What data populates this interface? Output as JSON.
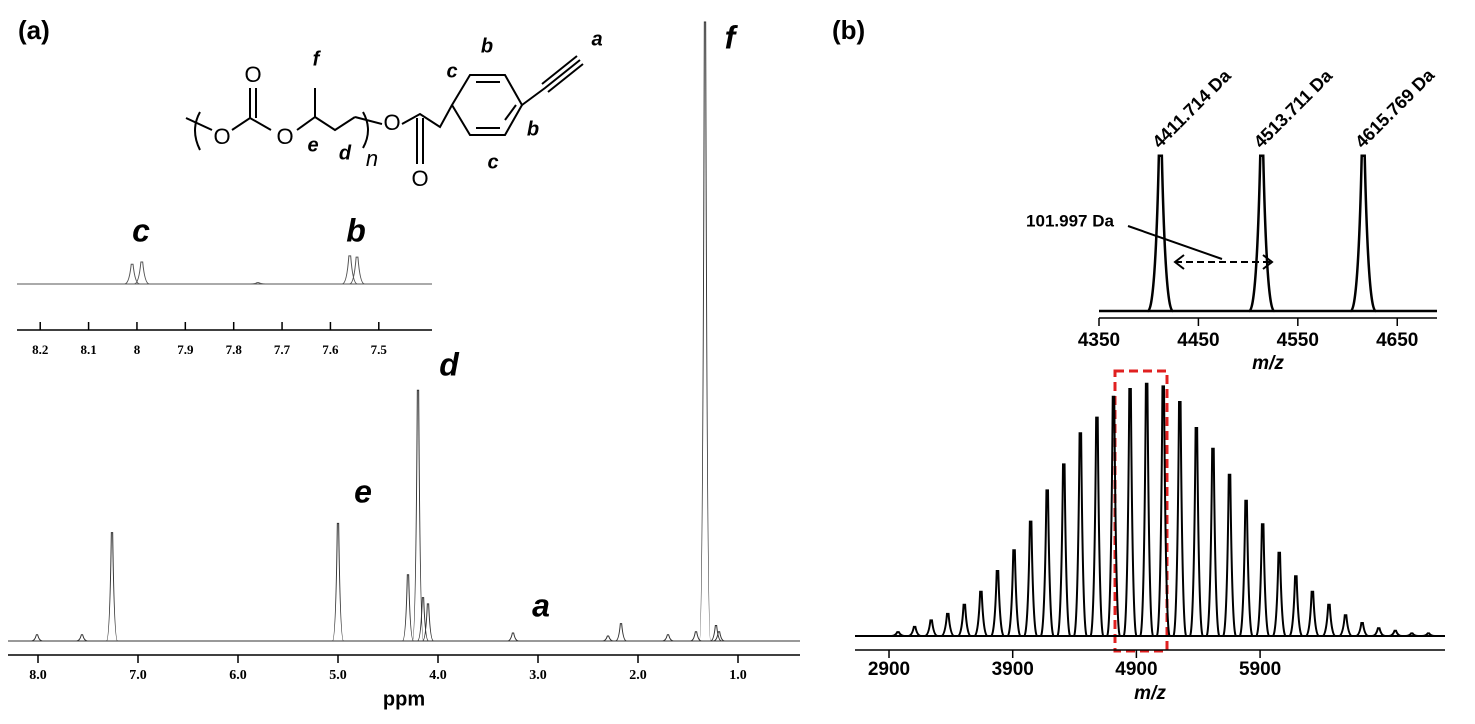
{
  "panel_labels": [
    "(a)",
    "(b)"
  ],
  "structure": {
    "atoms": [
      "O",
      "O",
      "O",
      "O",
      "O"
    ],
    "labels": [
      "f",
      "e",
      "d",
      "n",
      "c",
      "b",
      "a",
      "b",
      "c"
    ]
  },
  "chart_data": [
    {
      "type": "spectrum",
      "xlabel": "ppm",
      "x": [
        8.01,
        7.56,
        7.26,
        5.0,
        4.3,
        4.2,
        4.15,
        4.1,
        3.25,
        2.3,
        2.17,
        1.7,
        1.42,
        1.33,
        1.22,
        1.19
      ],
      "values": [
        1,
        1,
        17.5,
        19,
        10.7,
        40.5,
        7,
        6,
        1.3,
        0.8,
        2.8,
        1,
        1.5,
        100,
        2.5,
        1.5
      ],
      "xlim": [
        8.3,
        0.38
      ],
      "ylim": [
        0,
        100
      ],
      "xticks": [
        {
          "value": 8,
          "label": "8.0"
        },
        {
          "value": 7,
          "label": "7.0"
        },
        {
          "value": 6,
          "label": "6.0"
        },
        {
          "value": 5,
          "label": "5.0"
        },
        {
          "value": 4,
          "label": "4.0"
        },
        {
          "value": 3,
          "label": "3.0"
        },
        {
          "value": 2,
          "label": "2.0"
        },
        {
          "value": 1,
          "label": "1.0"
        }
      ],
      "annotations": [
        "f",
        "d",
        "e",
        "a"
      ],
      "color": "#333333"
    },
    {
      "type": "spectrum",
      "x": [
        8.01,
        7.99,
        7.75,
        7.56,
        7.545
      ],
      "values": [
        45,
        50,
        3,
        64,
        61
      ],
      "xlim": [
        8.248,
        7.39
      ],
      "ylim": [
        0,
        100
      ],
      "xticks": [
        8.2,
        8.1,
        8.0,
        7.9,
        7.8,
        7.7,
        7.6,
        7.5
      ],
      "annotations": [
        "c",
        "b"
      ],
      "color": "#555555"
    },
    {
      "type": "spectrum",
      "xlabel": "m/z",
      "x": [
        4411.714,
        4513.711,
        4615.769
      ],
      "x_labels": [
        "4411.714 Da",
        "4513.711 Da",
        "4615.769 Da"
      ],
      "values": [
        97,
        97,
        97
      ],
      "xlim": [
        4350,
        4690
      ],
      "ylim": [
        0,
        100
      ],
      "xticks": [
        4350,
        4450,
        4550,
        4650
      ],
      "annotations": [
        "101.997 Da"
      ],
      "color": "#000000"
    },
    {
      "type": "spectrum",
      "xlabel": "m/z",
      "x": [
        2973,
        3107,
        3241,
        3375,
        3509,
        3643,
        3777,
        3911,
        4045,
        4179,
        4313,
        4447,
        4581,
        4715,
        4849,
        4983,
        5117,
        5251,
        5385,
        5519,
        5653,
        5787,
        5921,
        6055,
        6189,
        6323,
        6457,
        6591,
        6725,
        6859,
        6993,
        7127,
        7261
      ],
      "values": [
        1.5,
        3.5,
        6,
        8.5,
        12,
        17,
        25,
        33,
        44,
        56,
        66,
        78,
        84,
        92,
        95,
        97,
        96,
        90,
        80,
        72,
        62,
        52,
        43,
        32,
        23,
        17,
        12,
        8,
        5,
        3,
        2,
        1,
        1
      ],
      "xlim": [
        2625,
        7395
      ],
      "ylim": [
        0,
        100
      ],
      "xticks": [
        2900,
        3900,
        4900,
        5900
      ],
      "color": "#000000"
    }
  ]
}
